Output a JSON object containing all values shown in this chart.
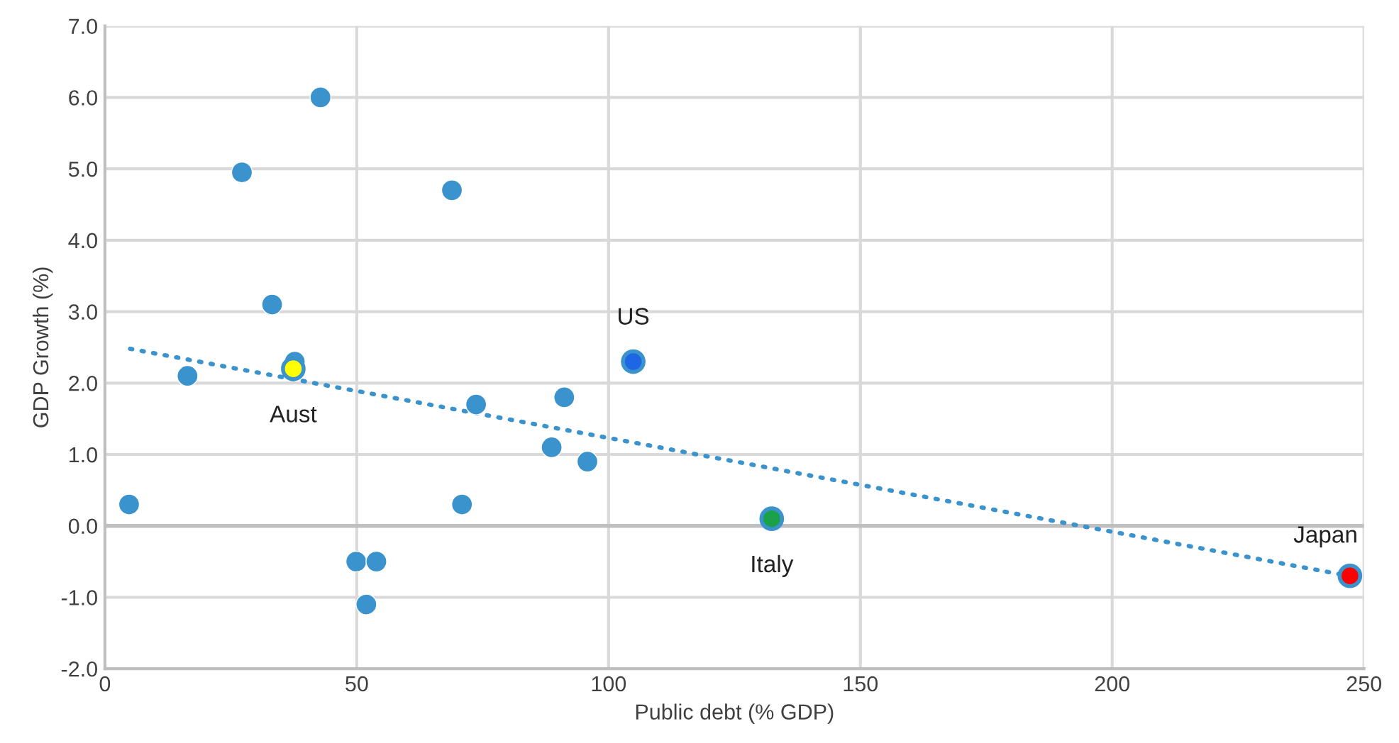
{
  "chart_data": {
    "type": "scatter",
    "xlabel": "Public debt (% GDP)",
    "ylabel": "GDP Growth (%)",
    "series": [
      {
        "color": "#3a93cd",
        "x": [
          4.8,
          16.4,
          27.2,
          33.2,
          37.7,
          42.8,
          49.9,
          51.9,
          53.9,
          68.9,
          70.9,
          73.7,
          88.7,
          91.2,
          95.8
        ],
        "values": [
          0.3,
          2.1,
          4.95,
          3.1,
          2.3,
          6.0,
          -0.5,
          -1.1,
          -0.5,
          4.7,
          0.3,
          1.7,
          1.1,
          1.8,
          0.9
        ]
      },
      {
        "x": [
          37.4,
          104.9,
          132.4,
          247.2
        ],
        "values": [
          2.2,
          2.3,
          0.1,
          -0.7
        ],
        "colors": [
          "#ffff00",
          "#1f66e5",
          "#1aa14a",
          "#ff0000"
        ]
      },
      {
        "type": "line",
        "color": "#3a93cd",
        "line_style": "dotted",
        "x": [
          5,
          247
        ],
        "values": [
          2.48,
          -0.7
        ]
      }
    ],
    "annotations": [
      {
        "text": "Aust",
        "x": 37.4,
        "y": 2.2
      },
      {
        "text": "US",
        "x": 104.9,
        "y": 2.3
      },
      {
        "text": "Italy",
        "x": 132.4,
        "y": 0.1
      },
      {
        "text": "Japan",
        "x": 247.2,
        "y": -0.7
      }
    ],
    "xlim": [
      0,
      250
    ],
    "xticks": [
      0,
      50,
      100,
      150,
      200,
      250
    ],
    "ylim": [
      -2,
      7
    ],
    "yticks": [
      {
        "value": -2,
        "label": "-2.0"
      },
      {
        "value": -1,
        "label": "-1.0"
      },
      {
        "value": 0,
        "label": "0.0"
      },
      {
        "value": 1,
        "label": "1.0"
      },
      {
        "value": 2,
        "label": "2.0"
      },
      {
        "value": 3,
        "label": "3.0"
      },
      {
        "value": 4,
        "label": "4.0"
      },
      {
        "value": 5,
        "label": "5.0"
      },
      {
        "value": 6,
        "label": "6.0"
      },
      {
        "value": 7,
        "label": "7.0"
      }
    ],
    "ref_lines": [
      {
        "axis": "y",
        "value": 0,
        "color": "#bfbfbf"
      }
    ],
    "grid": true
  }
}
